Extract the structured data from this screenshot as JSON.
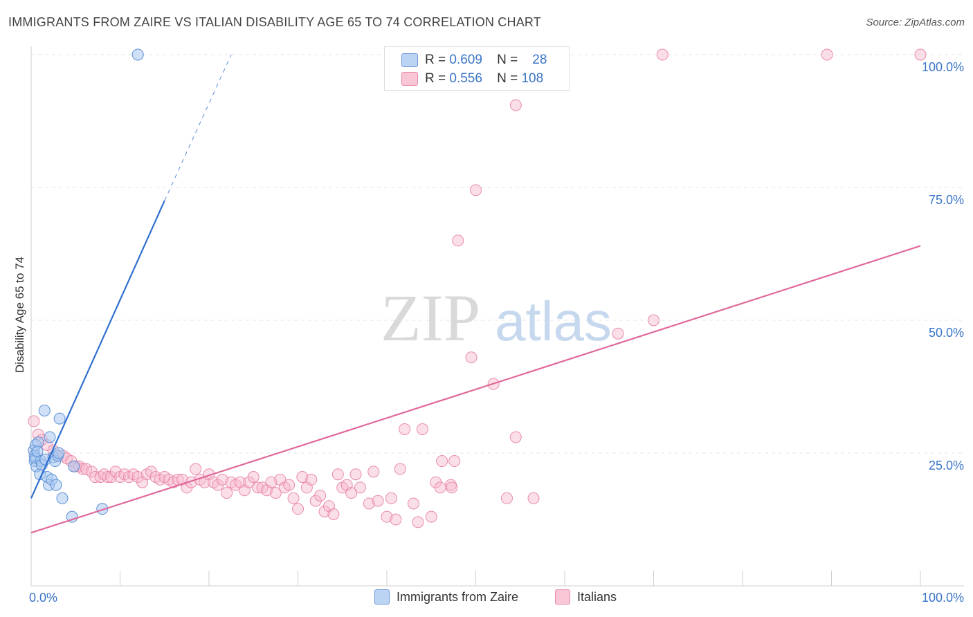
{
  "title": "IMMIGRANTS FROM ZAIRE VS ITALIAN DISABILITY AGE 65 TO 74 CORRELATION CHART",
  "source": "Source: ZipAtlas.com",
  "watermark": {
    "zip": "ZIP",
    "atlas": "atlas"
  },
  "legend": {
    "r_label": "R =",
    "n_label": "N =",
    "series1": {
      "r": "0.609",
      "n": "28"
    },
    "series2": {
      "r": "0.556",
      "n": "108"
    }
  },
  "colors": {
    "blue_fill": "#a9c8f0",
    "blue_stroke": "#5b8fd6",
    "blue_line": "#2f6fce",
    "pink_fill": "#f6b9cc",
    "pink_stroke": "#e98aab",
    "pink_line": "#e0689a",
    "axis_text": "#3a74c8"
  },
  "chart_data": {
    "type": "scatter",
    "title": "IMMIGRANTS FROM ZAIRE VS ITALIAN DISABILITY AGE 65 TO 74 CORRELATION CHART",
    "xlabel": "",
    "ylabel": "Disability Age 65 to 74",
    "xlim": [
      0,
      100
    ],
    "ylim": [
      0,
      100
    ],
    "x_tick_labels": [
      "0.0%",
      "100.0%"
    ],
    "y_ticks": [
      25,
      50,
      75,
      100
    ],
    "y_tick_labels": [
      "25.0%",
      "50.0%",
      "75.0%",
      "100.0%"
    ],
    "grid": true,
    "series": [
      {
        "name": "Immigrants from Zaire",
        "r": 0.609,
        "n": 28,
        "trend": {
          "x0": 0,
          "y0": 16.5,
          "x1": 15,
          "y1": 72.5,
          "dash_x1": 22.5,
          "dash_y1": 100
        },
        "points": [
          [
            0.3,
            25.5
          ],
          [
            0.4,
            24.5
          ],
          [
            0.4,
            23.5
          ],
          [
            0.5,
            24
          ],
          [
            0.6,
            22.5
          ],
          [
            0.5,
            26.5
          ],
          [
            0.8,
            27
          ],
          [
            0.7,
            25.3
          ],
          [
            1.0,
            21
          ],
          [
            1.1,
            23.5
          ],
          [
            1.2,
            22.8
          ],
          [
            1.5,
            33
          ],
          [
            1.6,
            23.8
          ],
          [
            1.8,
            20.5
          ],
          [
            2.0,
            19
          ],
          [
            2.1,
            28
          ],
          [
            2.3,
            20
          ],
          [
            2.5,
            24.2
          ],
          [
            2.7,
            23.5
          ],
          [
            2.8,
            19
          ],
          [
            3.0,
            24.5
          ],
          [
            3.1,
            25
          ],
          [
            3.2,
            31.5
          ],
          [
            3.5,
            16.5
          ],
          [
            4.6,
            13
          ],
          [
            4.8,
            22.5
          ],
          [
            8.0,
            14.5
          ],
          [
            12.0,
            100
          ]
        ]
      },
      {
        "name": "Italians",
        "r": 0.556,
        "n": 108,
        "trend": {
          "x0": 0,
          "y0": 10,
          "x1": 100,
          "y1": 64
        },
        "points": [
          [
            0.3,
            31
          ],
          [
            0.8,
            28.5
          ],
          [
            1.2,
            27.5
          ],
          [
            1.8,
            26.5
          ],
          [
            2.5,
            25.5
          ],
          [
            3.0,
            24.5
          ],
          [
            3.6,
            24.5
          ],
          [
            4.0,
            24
          ],
          [
            4.5,
            23.5
          ],
          [
            5.0,
            22.5
          ],
          [
            5.4,
            22.5
          ],
          [
            5.8,
            22
          ],
          [
            6.2,
            22
          ],
          [
            6.8,
            21.5
          ],
          [
            7.2,
            20.5
          ],
          [
            7.8,
            20.5
          ],
          [
            8.2,
            21
          ],
          [
            8.6,
            20.5
          ],
          [
            9.0,
            20.5
          ],
          [
            9.5,
            21.5
          ],
          [
            10.0,
            20.5
          ],
          [
            10.5,
            21
          ],
          [
            11.0,
            20.5
          ],
          [
            11.5,
            21
          ],
          [
            12.0,
            20.5
          ],
          [
            12.5,
            19.5
          ],
          [
            13.0,
            21
          ],
          [
            13.5,
            21.5
          ],
          [
            14.0,
            20.5
          ],
          [
            14.5,
            20
          ],
          [
            15.0,
            20.5
          ],
          [
            15.5,
            20
          ],
          [
            16.0,
            19.5
          ],
          [
            16.5,
            20
          ],
          [
            17.0,
            20
          ],
          [
            17.5,
            18.5
          ],
          [
            18.0,
            19.5
          ],
          [
            18.5,
            22
          ],
          [
            19.0,
            20
          ],
          [
            19.5,
            19.5
          ],
          [
            20.0,
            21
          ],
          [
            20.5,
            19.5
          ],
          [
            21.0,
            19
          ],
          [
            21.5,
            20
          ],
          [
            22.0,
            17.5
          ],
          [
            22.5,
            19.5
          ],
          [
            23.0,
            19
          ],
          [
            23.5,
            19.5
          ],
          [
            24.0,
            18
          ],
          [
            24.5,
            19.5
          ],
          [
            25.0,
            20.5
          ],
          [
            25.5,
            18.5
          ],
          [
            26.0,
            18.5
          ],
          [
            26.5,
            18
          ],
          [
            27.0,
            19.5
          ],
          [
            27.5,
            17.5
          ],
          [
            28.0,
            20
          ],
          [
            28.5,
            18.5
          ],
          [
            29.0,
            19
          ],
          [
            29.5,
            16.5
          ],
          [
            30.0,
            14.5
          ],
          [
            30.5,
            20.5
          ],
          [
            31.0,
            18.5
          ],
          [
            31.5,
            20
          ],
          [
            32.0,
            16
          ],
          [
            32.5,
            17
          ],
          [
            33.0,
            14
          ],
          [
            33.5,
            15
          ],
          [
            34.0,
            13.5
          ],
          [
            34.5,
            21
          ],
          [
            35.0,
            18.5
          ],
          [
            35.5,
            19
          ],
          [
            36.0,
            17.5
          ],
          [
            36.5,
            21
          ],
          [
            37.0,
            18.5
          ],
          [
            38.0,
            15.5
          ],
          [
            38.5,
            21.5
          ],
          [
            39.0,
            16
          ],
          [
            40.0,
            13
          ],
          [
            40.5,
            16.5
          ],
          [
            41.0,
            12.5
          ],
          [
            41.5,
            22
          ],
          [
            42.0,
            29.5
          ],
          [
            43.0,
            15.5
          ],
          [
            43.5,
            12
          ],
          [
            44.0,
            29.5
          ],
          [
            45.0,
            13
          ],
          [
            45.5,
            19.5
          ],
          [
            46.0,
            18.5
          ],
          [
            46.2,
            23.5
          ],
          [
            47.2,
            19
          ],
          [
            47.3,
            18.5
          ],
          [
            47.6,
            23.5
          ],
          [
            48.0,
            65
          ],
          [
            49.5,
            43
          ],
          [
            50.0,
            74.5
          ],
          [
            52.0,
            38
          ],
          [
            53.5,
            16.5
          ],
          [
            54.5,
            28
          ],
          [
            54.5,
            90.5
          ],
          [
            56.5,
            16.5
          ],
          [
            66.0,
            47.5
          ],
          [
            70.0,
            50
          ],
          [
            71.0,
            100
          ],
          [
            89.5,
            100
          ],
          [
            100.0,
            100
          ]
        ]
      }
    ]
  },
  "bottom_legend": {
    "series1": "Immigrants from Zaire",
    "series2": "Italians"
  }
}
